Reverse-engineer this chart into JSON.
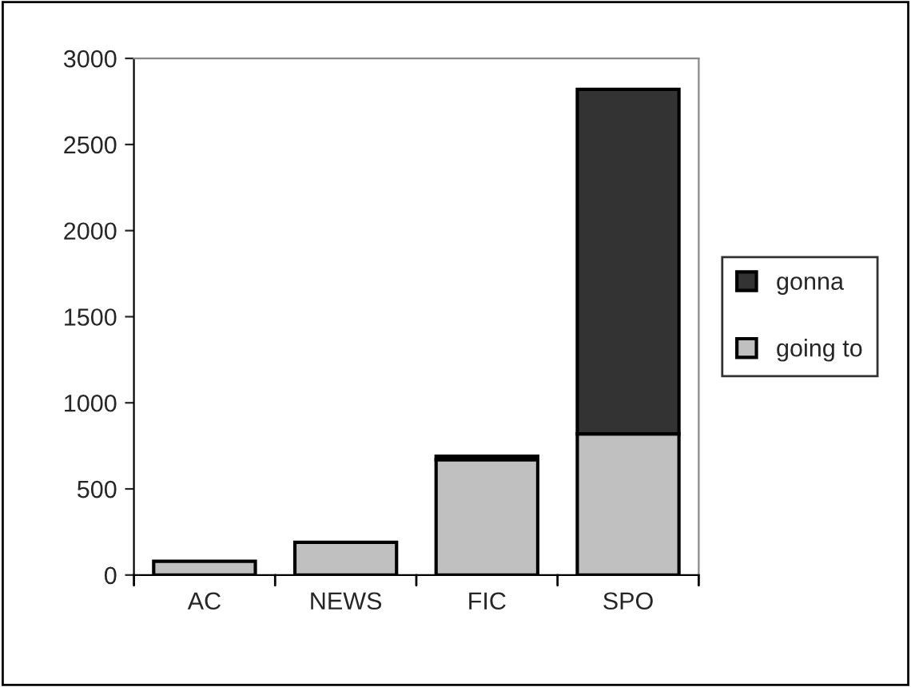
{
  "chart_data": {
    "type": "bar",
    "stacked": true,
    "categories": [
      "AC",
      "NEWS",
      "FIC",
      "SPO"
    ],
    "series": [
      {
        "name": "going to",
        "color": "#c0c0c0",
        "values": [
          80,
          190,
          670,
          820
        ]
      },
      {
        "name": "gonna",
        "color": "#333333",
        "values": [
          null,
          null,
          20,
          2000
        ]
      }
    ],
    "ylim": [
      0,
      3000
    ],
    "yticks": [
      0,
      500,
      1000,
      1500,
      2000,
      2500,
      3000
    ],
    "grid": false,
    "legend": "right"
  }
}
